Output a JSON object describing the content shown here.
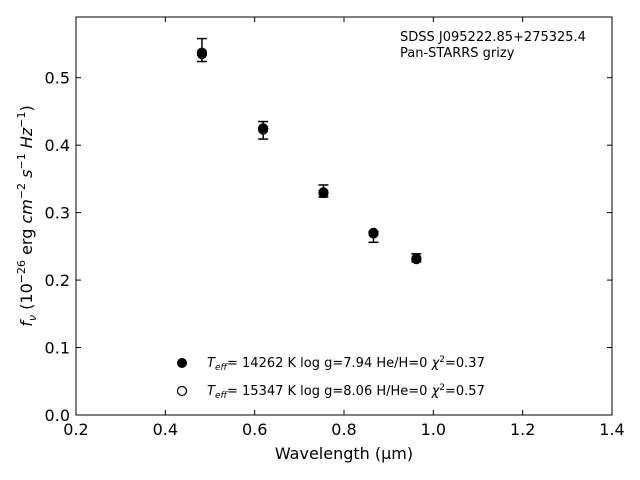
{
  "chart_data": {
    "type": "scatter",
    "title": "",
    "xlabel": "Wavelength (μm)",
    "ylabel_parts": [
      "f",
      "ν",
      " (10",
      "−26",
      " erg ",
      "cm",
      "−2",
      " ",
      "s",
      "−1",
      " ",
      "Hz",
      "−1",
      ")"
    ],
    "xlim": [
      0.2,
      1.4
    ],
    "ylim": [
      0.0,
      0.59
    ],
    "xticks": [
      0.2,
      0.4,
      0.6,
      0.8,
      1.0,
      1.2,
      1.4
    ],
    "yticks": [
      0.0,
      0.1,
      0.2,
      0.3,
      0.4,
      0.5
    ],
    "xtick_labels": [
      "0.2",
      "0.4",
      "0.6",
      "0.8",
      "1.0",
      "1.2",
      "1.4"
    ],
    "ytick_labels": [
      "0.0",
      "0.1",
      "0.2",
      "0.3",
      "0.4",
      "0.5"
    ],
    "grid": false,
    "annotation_lines": [
      "SDSS J095222.85+275325.4",
      "Pan-STARRS grizy"
    ],
    "observed": {
      "x": [
        0.482,
        0.619,
        0.754,
        0.866,
        0.962
      ],
      "y": [
        0.541,
        0.422,
        0.332,
        0.264,
        0.233
      ],
      "yerr": [
        0.017,
        0.013,
        0.009,
        0.008,
        0.006
      ]
    },
    "series": [
      {
        "marker": "filled",
        "legend": {
          "teff_val": "= 14262 K",
          "params": "  log g=7.94  He/H=0  ",
          "chi_val": "=0.37"
        },
        "x": [
          0.482,
          0.619,
          0.754,
          0.866,
          0.962
        ],
        "y": [
          0.537,
          0.425,
          0.33,
          0.269,
          0.231
        ]
      },
      {
        "marker": "open",
        "legend": {
          "teff_val": "= 15347 K",
          "params": "  log g=8.06  H/He=0  ",
          "chi_val": "=0.57"
        },
        "x": [
          0.482,
          0.619,
          0.754,
          0.866,
          0.962
        ],
        "y": [
          0.535,
          0.423,
          0.329,
          0.27,
          0.232
        ]
      }
    ],
    "legend_position": "lower-center"
  }
}
